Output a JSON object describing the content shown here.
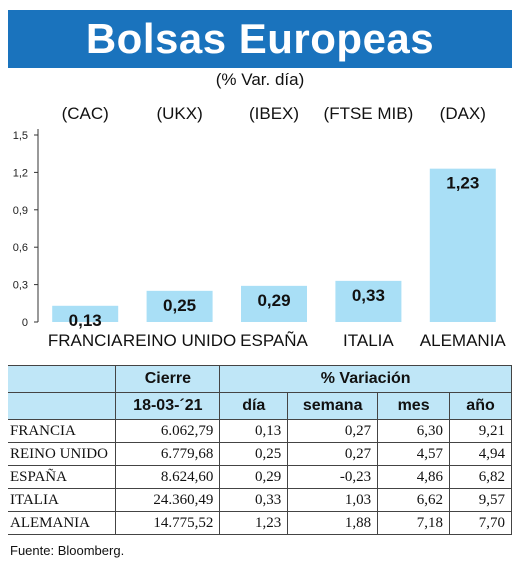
{
  "header": {
    "title": "Bolsas Europeas",
    "subtitle": "(% Var. día)"
  },
  "chart_data": {
    "type": "bar",
    "index_codes": [
      "(CAC)",
      "(UKX)",
      "(IBEX)",
      "(FTSE MIB)",
      "(DAX)"
    ],
    "categories": [
      "FRANCIA",
      "REINO UNIDO",
      "ESPAÑA",
      "ITALIA",
      "ALEMANIA"
    ],
    "values": [
      0.13,
      0.25,
      0.29,
      0.33,
      1.23
    ],
    "value_labels": [
      "0,13",
      "0,25",
      "0,29",
      "0,33",
      "1,23"
    ],
    "ylim": [
      0,
      1.5
    ],
    "yticks": [
      0,
      0.3,
      0.6,
      0.9,
      1.2,
      1.5
    ],
    "ytick_labels": [
      "0",
      "0,3",
      "0,6",
      "0,9",
      "1,2",
      "1,5"
    ],
    "bar_color": "#a9dff6",
    "grid": false
  },
  "table": {
    "group_headers": {
      "cierre": "Cierre",
      "variacion": "% Variación"
    },
    "col_headers": {
      "date": "18-03-´21",
      "dia": "día",
      "semana": "semana",
      "mes": "mes",
      "ano": "año"
    },
    "rows": [
      {
        "country": "FRANCIA",
        "cierre": "6.062,79",
        "dia": "0,13",
        "semana": "0,27",
        "mes": "6,30",
        "ano": "9,21"
      },
      {
        "country": "REINO UNIDO",
        "cierre": "6.779,68",
        "dia": "0,25",
        "semana": "0,27",
        "mes": "4,57",
        "ano": "4,94"
      },
      {
        "country": "ESPAÑA",
        "cierre": "8.624,60",
        "dia": "0,29",
        "semana": "-0,23",
        "mes": "4,86",
        "ano": "6,82"
      },
      {
        "country": "ITALIA",
        "cierre": "24.360,49",
        "dia": "0,33",
        "semana": "1,03",
        "mes": "6,62",
        "ano": "9,57"
      },
      {
        "country": "ALEMANIA",
        "cierre": "14.775,52",
        "dia": "1,23",
        "semana": "1,88",
        "mes": "7,18",
        "ano": "7,70"
      }
    ]
  },
  "source": "Fuente: Bloomberg.",
  "colors": {
    "title_bg": "#1a73bd",
    "header_bg": "#bfe6f7"
  }
}
